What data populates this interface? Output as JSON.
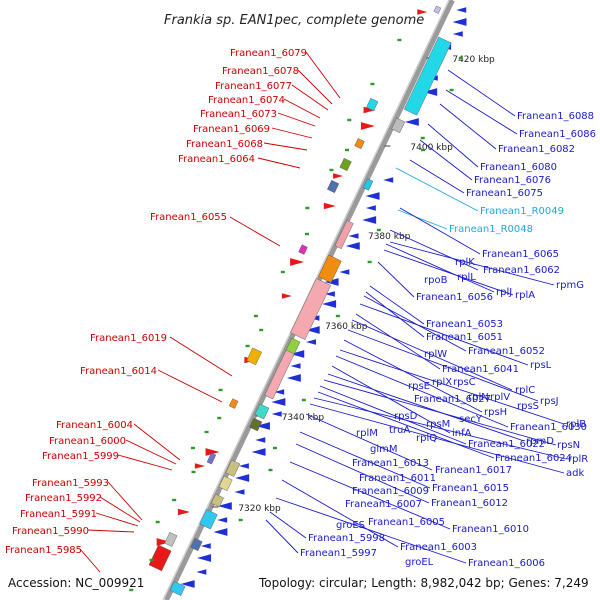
{
  "title": "Frankia sp. EAN1pec, complete genome",
  "accession": "Accession: NC_009921",
  "summary": "Topology: circular; Length: 8,982,042 bp; Genes: 7,249",
  "ticks": [
    "7420 kbp",
    "7400 kbp",
    "7380 kbp",
    "7360 kbp",
    "7340 kbp",
    "7320 kbp"
  ],
  "left_labels": [
    "Franean1_6079",
    "Franean1_6078",
    "Franean1_6077",
    "Franean1_6074",
    "Franean1_6073",
    "Franean1_6069",
    "Franean1_6068",
    "Franean1_6064",
    "Franean1_6055",
    "Franean1_6019",
    "Franean1_6014",
    "Franean1_6004",
    "Franean1_6000",
    "Franean1_5999",
    "Franean1_5993",
    "Franean1_5992",
    "Franean1_5991",
    "Franean1_5990",
    "Franean1_5985"
  ],
  "right_labels": [
    "Franean1_6088",
    "Franean1_6086",
    "Franean1_6082",
    "Franean1_6080",
    "Franean1_6076",
    "Franean1_6075",
    "Franean1_R0049",
    "Franean1_R0048",
    "Franean1_6065",
    "rplK",
    "Franean1_6062",
    "rplL",
    "rpoB",
    "rpmG",
    "rplJ",
    "rplA",
    "Franean1_6056",
    "Franean1_6053",
    "Franean1_6051",
    "Franean1_6052",
    "rpsL",
    "rplW",
    "Franean1_6041",
    "rplX",
    "rpsC",
    "rplC",
    "rpsE",
    "Franean1_6027",
    "rplN",
    "rplV",
    "rpsJ",
    "rpsS",
    "rpsH",
    "rpsD",
    "secY",
    "rplB",
    "Franean1_6030",
    "rpsM",
    "infA",
    "rplM",
    "truA",
    "rplQ",
    "rpmD",
    "rpsN",
    "Franean1_6022",
    "glmM",
    "Franean1_6024",
    "rplR",
    "adk",
    "Franean1_6013",
    "Franean1_6017",
    "Franean1_6011",
    "Franean1_6015",
    "Franean1_6009",
    "Franean1_6007",
    "Franean1_6012",
    "Franean1_6005",
    "groES",
    "Franean1_6010",
    "Franean1_5998",
    "Franean1_6003",
    "Franean1_5997",
    "groEL",
    "Franean1_6006"
  ],
  "colors": {
    "forward_label": "#cc0000",
    "reverse_label": "#1a1acc",
    "rna_label": "#22a8d8",
    "backbone": "#9a9a9a"
  }
}
